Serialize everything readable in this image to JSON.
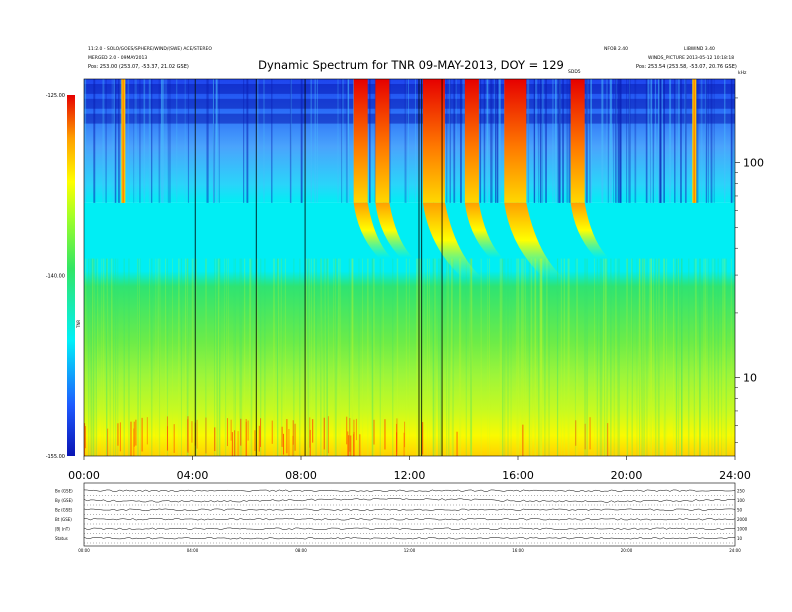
{
  "chart_data": [
    {
      "type": "heatmap",
      "title": "Dynamic Spectrum for TNR 09-MAY-2013, DOY = 129",
      "xlabel": "",
      "ylabel": "",
      "colorbar_label": "TNR",
      "x_ticks": [
        "00:00",
        "04:00",
        "08:00",
        "12:00",
        "16:00",
        "20:00",
        "24:00"
      ],
      "xlim_hours": [
        0,
        24
      ],
      "y_scale": "log",
      "y_unit": "kHz",
      "ylim": [
        4.32,
        245
      ],
      "y_tick_labels": [
        "100",
        "10"
      ],
      "y_tick_values": [
        100,
        10
      ],
      "colorbar_ticks": [
        "-125.00",
        "-140.00",
        "-155.00"
      ],
      "colorbar_values": [
        -125,
        -140,
        -155
      ],
      "colorbar_range": [
        -155,
        -125
      ],
      "band_boundary_khz": 65,
      "colors": {
        "dark_blue": "#0a14b4",
        "blue": "#1e5aff",
        "cyan": "#00f0f8",
        "green": "#32e664",
        "yellow_green": "#a0ff28",
        "yellow": "#ffff00",
        "orange": "#ffa000",
        "red": "#e60000"
      },
      "radio_bursts": [
        {
          "hour": 1.45,
          "type": "narrow"
        },
        {
          "hour": 10.2,
          "type": "drifting"
        },
        {
          "hour": 11.0,
          "type": "drifting"
        },
        {
          "hour": 12.9,
          "type": "strong"
        },
        {
          "hour": 14.3,
          "type": "drifting"
        },
        {
          "hour": 15.9,
          "type": "strong"
        },
        {
          "hour": 18.2,
          "type": "drifting"
        },
        {
          "hour": 22.5,
          "type": "narrow"
        }
      ],
      "data_gaps_hours": [
        4.1,
        6.35,
        8.15,
        12.35,
        12.45,
        13.2
      ],
      "corner_text": {
        "top_left_1": "11:2.0 - SOLO/GOES/SPHERE/WIND/(SWE) ACE/STEREO",
        "top_left_2": "MERGED 2.0 - 09MAY2013",
        "top_left_3": "Pos:    253.00 (253.07, -53.37, 21.02 GSE)",
        "top_right_1": "NFOB 2.40",
        "top_right_2": "LIBWIND 3.40",
        "top_right_3": "WINDS_PICTURE 2013-05-12 10:18:18",
        "top_right_4": "Pos:    253.54 (253.58, -53.07, 20.76 GSE)",
        "sdd_label": "SDD5",
        "khz_label": "kHz"
      }
    },
    {
      "type": "line",
      "title": "",
      "x_ticks": [
        "00:00",
        "04:00",
        "08:00",
        "12:00",
        "16:00",
        "20:00",
        "24:00"
      ],
      "series": [
        {
          "name": "Bx (GSE)"
        },
        {
          "name": "By (GSE)"
        },
        {
          "name": "Bz (GSE)"
        },
        {
          "name": "Bt (GSE)"
        },
        {
          "name": "|B| (nT)"
        },
        {
          "name": "Status"
        }
      ],
      "right_axis_labels": [
        "250",
        "100",
        "50",
        "2000",
        "1000",
        "10"
      ]
    }
  ]
}
